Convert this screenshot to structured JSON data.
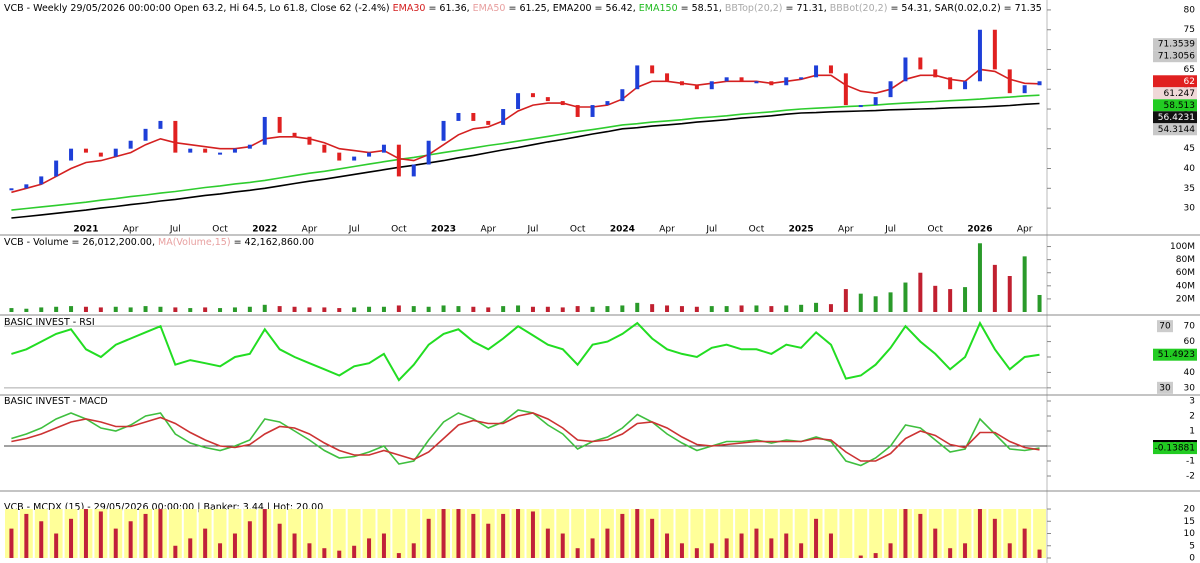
{
  "chart_data": [
    {
      "type": "candles",
      "header": [
        {
          "text": "VCB - Weekly 29/05/2026 00:00:00 Open 63.2, Hi 64.5, Lo 61.8, Close 62 (-2.4%) ",
          "color": "#000000"
        },
        {
          "text": "EMA30",
          "color": "#d42020"
        },
        {
          "text": " = 61.36, ",
          "color": "#000000"
        },
        {
          "text": "EMA50",
          "color": "#e8a0a0"
        },
        {
          "text": " = 61.25, EMA200 = 56.42, ",
          "color": "#000000"
        },
        {
          "text": "EMA150",
          "color": "#22bb22"
        },
        {
          "text": " = 58.51, ",
          "color": "#000000"
        },
        {
          "text": "BBTop(20,2)",
          "color": "#aaaaaa"
        },
        {
          "text": " = 71.31, ",
          "color": "#000000"
        },
        {
          "text": "BBBot(20,2)",
          "color": "#aaaaaa"
        },
        {
          "text": " = 54.31, SAR(0.02,0.2) = 71.35",
          "color": "#000000"
        }
      ],
      "categories": [
        null,
        null,
        null,
        null,
        null,
        "2021",
        null,
        null,
        "Apr",
        null,
        null,
        "Jul",
        null,
        null,
        "Oct",
        null,
        null,
        "2022",
        null,
        null,
        "Apr",
        null,
        null,
        "Jul",
        null,
        null,
        "Oct",
        null,
        null,
        "2023",
        null,
        null,
        "Apr",
        null,
        null,
        "Jul",
        null,
        null,
        "Oct",
        null,
        null,
        "2024",
        null,
        null,
        "Apr",
        null,
        null,
        "Jul",
        null,
        null,
        "Oct",
        null,
        null,
        "2025",
        null,
        null,
        "Apr",
        null,
        null,
        "Jul",
        null,
        null,
        "Oct",
        null,
        null,
        "2026",
        null,
        null,
        "Apr",
        null
      ],
      "up_color": "#1e3fd8",
      "down_color": "#e02020",
      "series": [
        {
          "color": "#1e3fd8",
          "values": [
            35,
            36,
            38,
            42,
            45,
            44,
            43,
            45,
            47,
            50,
            52,
            44,
            45,
            44,
            44,
            45,
            46,
            53,
            49,
            48,
            46,
            44,
            42,
            43,
            44,
            46,
            38,
            41,
            47,
            52,
            54,
            52,
            51,
            55,
            59,
            58,
            57,
            56,
            53,
            56,
            57,
            60,
            66,
            64,
            62,
            61,
            60,
            62,
            63,
            62,
            62,
            61,
            63,
            63,
            66,
            64,
            56,
            56,
            58,
            62,
            68,
            65,
            63,
            60,
            62,
            75,
            65,
            59,
            61,
            62
          ]
        },
        {
          "color": "#d42020",
          "values": [
            34,
            35,
            36,
            38,
            40,
            41.5,
            42,
            43,
            44,
            46,
            47.5,
            46.5,
            46,
            45.5,
            45,
            45,
            45.5,
            47.5,
            48,
            48,
            47.5,
            46.5,
            45,
            44.5,
            44,
            44.5,
            42.5,
            42,
            43.5,
            46,
            48.5,
            50,
            50.5,
            52,
            54.5,
            56,
            56.5,
            56.5,
            55.5,
            55.5,
            56,
            57.5,
            60.5,
            62,
            62,
            61.5,
            61,
            61.5,
            62,
            62,
            62,
            61.5,
            62,
            62.5,
            63.5,
            63.5,
            61,
            59.5,
            59,
            60,
            62.5,
            63.5,
            63.5,
            62.5,
            62,
            65,
            64.5,
            62.5,
            61.5,
            61.36
          ]
        },
        {
          "color": "#2ecc2e",
          "values": [
            29.5,
            29.9,
            30.3,
            30.7,
            31.1,
            31.5,
            32,
            32.4,
            32.9,
            33.3,
            33.8,
            34.2,
            34.7,
            35.2,
            35.6,
            36.1,
            36.5,
            37,
            37.6,
            38.2,
            38.8,
            39.3,
            39.9,
            40.5,
            41.1,
            41.7,
            42.3,
            42.8,
            43.4,
            44,
            44.6,
            45.2,
            45.8,
            46.3,
            46.9,
            47.5,
            48.1,
            48.7,
            49.3,
            49.8,
            50.4,
            51,
            51.3,
            51.7,
            52,
            52.3,
            52.7,
            53,
            53.3,
            53.7,
            54,
            54.3,
            54.7,
            55,
            55.2,
            55.4,
            55.6,
            55.8,
            56,
            56.3,
            56.5,
            56.7,
            56.9,
            57.1,
            57.3,
            57.5,
            57.8,
            58,
            58.3,
            58.5
          ]
        },
        {
          "color": "#000000",
          "values": [
            27.5,
            27.9,
            28.3,
            28.7,
            29.1,
            29.5,
            30,
            30.4,
            30.9,
            31.3,
            31.8,
            32.2,
            32.7,
            33.2,
            33.6,
            34.1,
            34.5,
            35,
            35.6,
            36.2,
            36.8,
            37.3,
            37.9,
            38.5,
            39.1,
            39.7,
            40.3,
            40.8,
            41.4,
            42,
            42.7,
            43.3,
            44,
            44.7,
            45.3,
            46,
            46.7,
            47.3,
            48,
            48.7,
            49.3,
            50,
            50.3,
            50.7,
            51,
            51.3,
            51.7,
            52,
            52.3,
            52.7,
            53,
            53.3,
            53.7,
            54,
            54.1,
            54.3,
            54.4,
            54.5,
            54.6,
            54.8,
            54.9,
            55,
            55.1,
            55.3,
            55.4,
            55.5,
            55.7,
            55.9,
            56.2,
            56.4
          ]
        }
      ],
      "ylim": [
        26.5,
        82
      ],
      "yticks": [
        30,
        35,
        40,
        45,
        50,
        55,
        60,
        65,
        70,
        75,
        80
      ],
      "last_values": [
        {
          "value": 71.3539,
          "color": "#c8c8c8",
          "text_color": "#000000"
        },
        {
          "value": 71.3056,
          "color": "#c8c8c8",
          "text_color": "#000000"
        },
        {
          "value": 62,
          "color": "#e02020",
          "text_color": "#ffffff"
        },
        {
          "value": 61.247,
          "color": "#f0d8d8",
          "text_color": "#000000"
        },
        {
          "value": 58.513,
          "color": "#22cc22",
          "text_color": "#000000"
        },
        {
          "value": 56.4231,
          "color": "#111111",
          "text_color": "#ffffff"
        },
        {
          "value": 54.3144,
          "color": "#c8c8c8",
          "text_color": "#000000"
        }
      ]
    },
    {
      "type": "volume",
      "header": [
        {
          "text": "VCB - Volume = 26,012,200.00, ",
          "color": "#000000"
        },
        {
          "text": "MA(Volume,15)",
          "color": "#e8a0a0"
        },
        {
          "text": " = 42,162,860.00",
          "color": "#000000"
        }
      ],
      "up_color": "#2a9a2a",
      "down_color": "#c02030",
      "values": [
        6000000,
        5000000,
        7000000,
        8000000,
        9000000,
        8000000,
        7000000,
        8000000,
        7000000,
        9000000,
        8000000,
        7000000,
        6000000,
        7000000,
        6000000,
        7000000,
        8000000,
        11000000,
        9000000,
        8000000,
        7000000,
        7000000,
        6000000,
        7000000,
        8000000,
        8000000,
        10000000,
        9000000,
        8000000,
        10000000,
        9000000,
        8000000,
        7000000,
        9000000,
        10000000,
        8000000,
        8000000,
        7000000,
        9000000,
        8000000,
        9000000,
        10000000,
        14000000,
        12000000,
        10000000,
        9000000,
        8000000,
        9000000,
        9000000,
        10000000,
        10000000,
        9000000,
        10000000,
        11000000,
        14000000,
        12000000,
        35000000,
        28000000,
        24000000,
        30000000,
        45000000,
        60000000,
        40000000,
        35000000,
        38000000,
        105000000,
        72000000,
        55000000,
        85000000,
        26000000
      ],
      "ylim": [
        0,
        110000000
      ],
      "yticks": [
        {
          "value": 20000000,
          "label": "20M"
        },
        {
          "value": 40000000,
          "label": "40M"
        },
        {
          "value": 60000000,
          "label": "60M"
        },
        {
          "value": 80000000,
          "label": "80M"
        },
        {
          "value": 100000000,
          "label": "100M"
        }
      ]
    },
    {
      "type": "line",
      "header": [
        {
          "text": "BASIC INVEST - RSI",
          "color": "#000000"
        }
      ],
      "series": [
        {
          "color": "#22dd22",
          "values": [
            52,
            55,
            60,
            65,
            68,
            55,
            50,
            58,
            62,
            66,
            70,
            45,
            48,
            46,
            44,
            50,
            52,
            68,
            55,
            50,
            46,
            42,
            38,
            44,
            46,
            52,
            35,
            45,
            58,
            65,
            68,
            60,
            55,
            62,
            70,
            64,
            58,
            55,
            45,
            58,
            60,
            65,
            72,
            62,
            55,
            52,
            50,
            56,
            58,
            55,
            55,
            52,
            58,
            56,
            66,
            58,
            36,
            38,
            45,
            56,
            70,
            60,
            52,
            42,
            50,
            72,
            55,
            42,
            50,
            51.4923
          ]
        }
      ],
      "ylim": [
        26,
        74
      ],
      "yticks": [
        30,
        40,
        50,
        60,
        70
      ],
      "levels": [
        30,
        70
      ],
      "last_values": [
        {
          "value": 51.4923,
          "color": "#22cc22",
          "text_color": "#000000"
        }
      ]
    },
    {
      "type": "line",
      "header": [
        {
          "text": "BASIC INVEST - MACD",
          "color": "#000000"
        }
      ],
      "series": [
        {
          "color": "#3fbf3f",
          "values": [
            0.5,
            0.8,
            1.2,
            1.8,
            2.2,
            1.8,
            1.2,
            1.0,
            1.4,
            2.0,
            2.2,
            0.8,
            0.2,
            -0.1,
            -0.3,
            0,
            0.4,
            1.8,
            1.6,
            1.0,
            0.4,
            -0.3,
            -0.8,
            -0.7,
            -0.4,
            0,
            -1.2,
            -1,
            0.4,
            1.6,
            2.2,
            1.8,
            1.2,
            1.6,
            2.4,
            2.2,
            1.4,
            0.8,
            -0.2,
            0.3,
            0.6,
            1.2,
            2.1,
            1.6,
            0.8,
            0.2,
            -0.3,
            0,
            0.3,
            0.3,
            0.4,
            0.2,
            0.4,
            0.3,
            0.6,
            0.3,
            -1,
            -1.3,
            -0.8,
            0,
            1.4,
            1.2,
            0.4,
            -0.4,
            -0.2,
            1.8,
            0.8,
            -0.2,
            -0.3,
            -0.13881
          ]
        },
        {
          "color": "#cc3333",
          "values": [
            0.3,
            0.5,
            0.8,
            1.2,
            1.6,
            1.8,
            1.6,
            1.3,
            1.3,
            1.6,
            1.9,
            1.5,
            0.9,
            0.4,
            0,
            -0.1,
            0.1,
            0.8,
            1.3,
            1.2,
            0.8,
            0.2,
            -0.3,
            -0.6,
            -0.6,
            -0.3,
            -0.6,
            -0.9,
            -0.4,
            0.5,
            1.4,
            1.7,
            1.5,
            1.5,
            2,
            2.2,
            1.8,
            1.2,
            0.4,
            0.3,
            0.4,
            0.8,
            1.5,
            1.6,
            1.2,
            0.6,
            0.1,
            0,
            0.1,
            0.2,
            0.3,
            0.3,
            0.3,
            0.3,
            0.5,
            0.4,
            -0.4,
            -1,
            -1,
            -0.5,
            0.5,
            1,
            0.7,
            0.1,
            -0.1,
            0.9,
            0.9,
            0.3,
            -0.1,
            -0.25
          ]
        }
      ],
      "ylim": [
        -2.8,
        3.2
      ],
      "yticks": [
        -2,
        -1,
        {
          "value": 0,
          "label": "0.00000"
        },
        1,
        2,
        3
      ],
      "last_values": [
        {
          "value": -0.13881,
          "color": "#22cc22",
          "text_color": "#000000"
        }
      ]
    },
    {
      "type": "mcdx",
      "header": [
        {
          "text": "VCB - MCDX (15) - 29/05/2026 00:00:00 | Banker: 3.44 | Hot: 20.00",
          "color": "#000000"
        }
      ],
      "series": [
        {
          "color": "#ffff99",
          "values": [
            20,
            20,
            20,
            20,
            20,
            20,
            20,
            20,
            20,
            20,
            20,
            20,
            20,
            20,
            20,
            20,
            20,
            20,
            20,
            20,
            20,
            20,
            20,
            20,
            20,
            20,
            20,
            20,
            20,
            20,
            20,
            20,
            20,
            20,
            20,
            20,
            20,
            20,
            20,
            20,
            20,
            20,
            20,
            20,
            20,
            20,
            20,
            20,
            20,
            20,
            20,
            20,
            20,
            20,
            20,
            20,
            20,
            20,
            20,
            20,
            20,
            20,
            20,
            20,
            20,
            20,
            20,
            20,
            20,
            20
          ]
        },
        {
          "color": "#c0203a",
          "values": [
            12,
            18,
            15,
            10,
            16,
            20,
            19,
            12,
            15,
            18,
            20,
            5,
            8,
            12,
            6,
            10,
            15,
            20,
            14,
            10,
            6,
            4,
            3,
            5,
            8,
            10,
            2,
            6,
            16,
            20,
            20,
            18,
            14,
            18,
            20,
            19,
            12,
            10,
            4,
            8,
            12,
            18,
            20,
            16,
            10,
            6,
            4,
            6,
            8,
            10,
            12,
            8,
            10,
            6,
            16,
            10,
            0,
            1,
            2,
            6,
            20,
            18,
            12,
            4,
            6,
            20,
            16,
            6,
            12,
            3.44
          ]
        }
      ],
      "ylim": [
        0,
        24.5
      ],
      "yticks": [
        0,
        5,
        10,
        15,
        20
      ]
    }
  ]
}
